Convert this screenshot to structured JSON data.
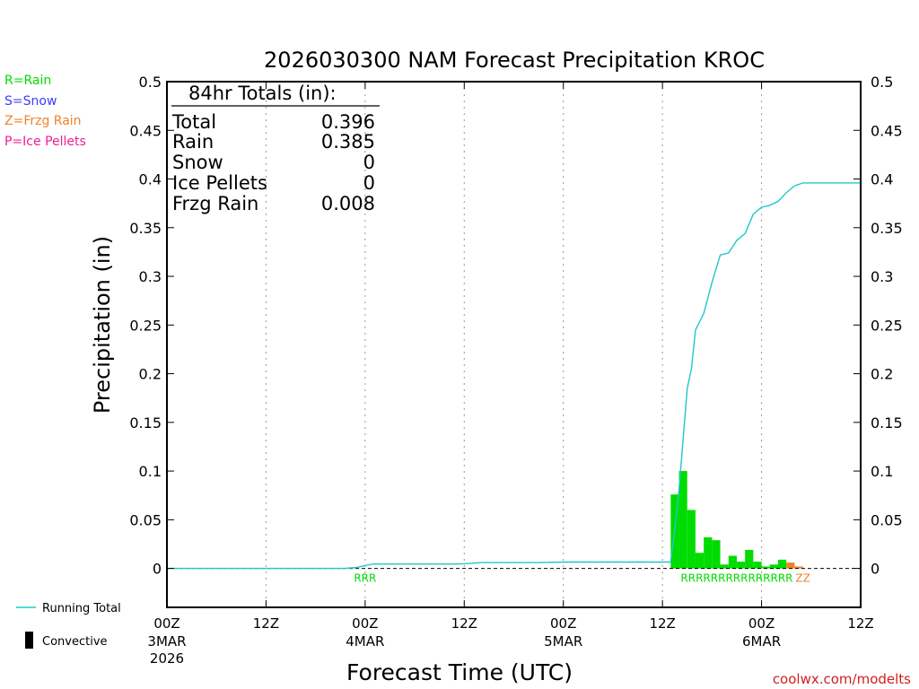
{
  "chart_data": {
    "type": "bar",
    "title": "2026030300 NAM Forecast Precipitation KROC",
    "xlabel": "Forecast Time (UTC)",
    "ylabel": "Precipitation (in)",
    "ylim": [
      -0.04,
      0.5
    ],
    "xlim_hours": [
      0,
      84
    ],
    "y_ticks": [
      "0",
      "0.05",
      "0.1",
      "0.15",
      "0.2",
      "0.25",
      "0.3",
      "0.35",
      "0.4",
      "0.45",
      "0.5"
    ],
    "x_ticks": [
      {
        "hour": 0,
        "time": "00Z",
        "date": "3MAR",
        "year": "2026"
      },
      {
        "hour": 12,
        "time": "12Z",
        "date": "",
        "year": ""
      },
      {
        "hour": 24,
        "time": "00Z",
        "date": "4MAR",
        "year": ""
      },
      {
        "hour": 36,
        "time": "12Z",
        "date": "",
        "year": ""
      },
      {
        "hour": 48,
        "time": "00Z",
        "date": "5MAR",
        "year": ""
      },
      {
        "hour": 60,
        "time": "12Z",
        "date": "",
        "year": ""
      },
      {
        "hour": 72,
        "time": "00Z",
        "date": "6MAR",
        "year": ""
      },
      {
        "hour": 84,
        "time": "12Z",
        "date": "",
        "year": ""
      }
    ],
    "series": [
      {
        "name": "Rain",
        "color": "#00dc00",
        "hours": [
          62,
          63,
          64,
          65,
          66,
          67,
          68,
          69,
          70,
          71,
          72,
          73,
          74,
          75,
          76
        ],
        "values": [
          0.076,
          0.1,
          0.06,
          0.016,
          0.032,
          0.029,
          0.004,
          0.013,
          0.007,
          0.019,
          0.007,
          0.002,
          0.004,
          0.009,
          0.0
        ]
      },
      {
        "name": "Frzg Rain",
        "color": "#f08228",
        "hours": [
          76,
          77
        ],
        "values": [
          0.006,
          0.002
        ]
      },
      {
        "name": "Running Total",
        "type": "line",
        "color": "#20c8c8",
        "hours": [
          0,
          20,
          21.5,
          23,
          24,
          25,
          30,
          35,
          36,
          38,
          45,
          48,
          55,
          61,
          61.5,
          62,
          63,
          63.5,
          64,
          65,
          66,
          67,
          68,
          69,
          70,
          71,
          72,
          73,
          74,
          75,
          76,
          77,
          78,
          84
        ],
        "values": [
          0.0,
          0.0,
          0.0,
          0.001,
          0.003,
          0.0045,
          0.0045,
          0.0045,
          0.0048,
          0.006,
          0.006,
          0.0065,
          0.0065,
          0.0065,
          0.04,
          0.08,
          0.185,
          0.205,
          0.245,
          0.262,
          0.294,
          0.322,
          0.324,
          0.337,
          0.344,
          0.364,
          0.371,
          0.373,
          0.377,
          0.386,
          0.393,
          0.396,
          0.396,
          0.396
        ]
      }
    ],
    "ptype_markers": [
      {
        "hour": 24,
        "label": "RRR",
        "color": "#00dc00"
      },
      {
        "hour": 69,
        "label": "RRRRRRRRRRRRRRR",
        "color": "#00dc00"
      },
      {
        "hour": 77,
        "label": "ZZ",
        "color": "#f08228"
      }
    ],
    "totals": {
      "header": "84hr Totals (in):",
      "rows": [
        {
          "label": "Total",
          "value": "0.396"
        },
        {
          "label": "Rain",
          "value": "0.385"
        },
        {
          "label": "Snow",
          "value": "0"
        },
        {
          "label": "Ice Pellets",
          "value": "0"
        },
        {
          "label": "Frzg Rain",
          "value": "0.008"
        }
      ]
    },
    "legend": {
      "ptypes": [
        {
          "text": "R=Rain",
          "color": "#00dc00"
        },
        {
          "text": "S=Snow",
          "color": "#3c3cff"
        },
        {
          "text": "Z=Frzg Rain",
          "color": "#f08228"
        },
        {
          "text": "P=Ice Pellets",
          "color": "#f01e96"
        }
      ],
      "running_total_label": "Running Total",
      "convective_label": "Convective"
    },
    "credit": "coolwx.com/modelts"
  }
}
